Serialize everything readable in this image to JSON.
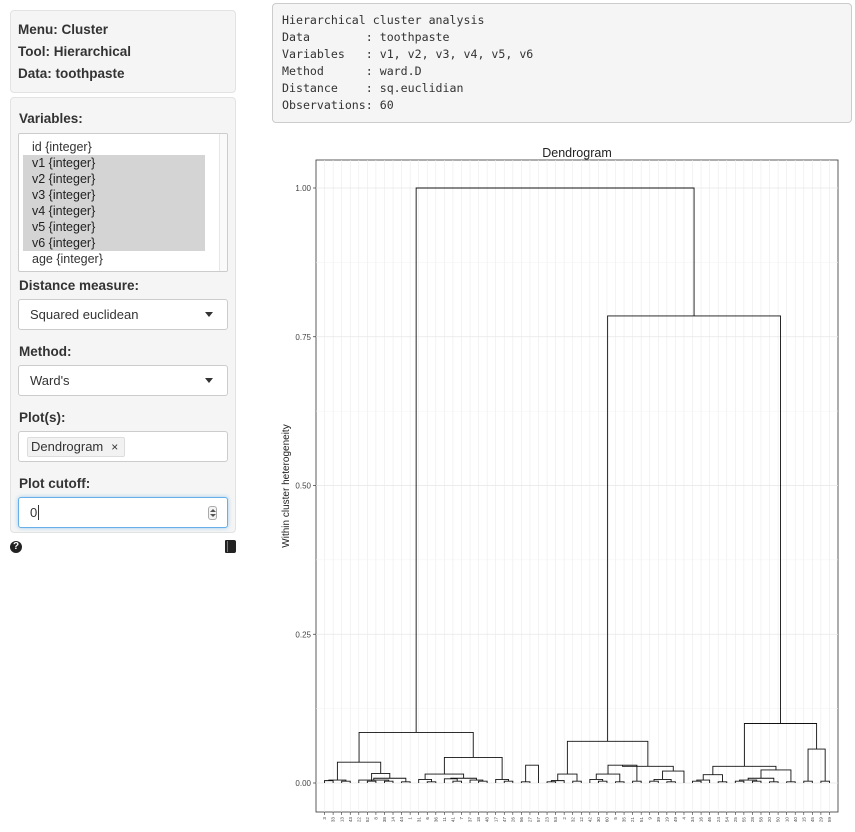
{
  "sidebar": {
    "info": {
      "menu": "Menu: Cluster",
      "tool": "Tool: Hierarchical",
      "data": "Data: toothpaste"
    },
    "variables_label": "Variables:",
    "variables": [
      {
        "label": "id {integer}",
        "selected": false
      },
      {
        "label": "v1 {integer}",
        "selected": true
      },
      {
        "label": "v2 {integer}",
        "selected": true
      },
      {
        "label": "v3 {integer}",
        "selected": true
      },
      {
        "label": "v4 {integer}",
        "selected": true
      },
      {
        "label": "v5 {integer}",
        "selected": true
      },
      {
        "label": "v6 {integer}",
        "selected": true
      },
      {
        "label": "age {integer}",
        "selected": false
      }
    ],
    "distance_label": "Distance measure:",
    "distance_value": "Squared euclidean",
    "method_label": "Method:",
    "method_value": "Ward's",
    "plots_label": "Plot(s):",
    "plots_tag": "Dendrogram",
    "plots_tag_remove": "×",
    "cutoff_label": "Plot cutoff:",
    "cutoff_value": "0",
    "help_icon_glyph": "?"
  },
  "summary": {
    "lines": [
      "Hierarchical cluster analysis",
      "Data        : toothpaste",
      "Variables   : v1, v2, v3, v4, v5, v6",
      "Method      : ward.D",
      "Distance    : sq.euclidian",
      "Observations: 60"
    ]
  },
  "chart_data": {
    "type": "dendrogram",
    "title": "Dendrogram",
    "ylabel": "Within cluster heterogeneity",
    "ylim": [
      0,
      1
    ],
    "yticks": [
      "0.00",
      "0.25",
      "0.50",
      "0.75",
      "1.00"
    ],
    "leaves": [
      "3",
      "33",
      "13",
      "43",
      "22",
      "52",
      "8",
      "38",
      "14",
      "44",
      "1",
      "31",
      "6",
      "36",
      "11",
      "41",
      "7",
      "37",
      "18",
      "48",
      "17",
      "47",
      "26",
      "56",
      "27",
      "57",
      "23",
      "53",
      "2",
      "32",
      "12",
      "42",
      "30",
      "60",
      "5",
      "35",
      "21",
      "51",
      "9",
      "39",
      "19",
      "49",
      "4",
      "34",
      "16",
      "46",
      "24",
      "54",
      "25",
      "55",
      "28",
      "58",
      "20",
      "50",
      "10",
      "40",
      "15",
      "45",
      "29",
      "59"
    ],
    "merges": [
      {
        "a": 1,
        "b": 0,
        "h": 0.004
      },
      {
        "a": 2,
        "b": 3,
        "h": 0.003
      },
      {
        "a": 5,
        "b": 6,
        "h": 0.003
      },
      {
        "a": 7,
        "b": 8,
        "h": 0.003
      },
      {
        "a": 9,
        "b": 10,
        "h": 0.002
      },
      {
        "a": 12,
        "b": 13,
        "h": 0.002
      },
      {
        "a": 15,
        "b": 16,
        "h": 0.003
      },
      {
        "a": 18,
        "b": 19,
        "h": 0.003
      },
      {
        "a": 21,
        "b": 22,
        "h": 0.003
      },
      {
        "a": 23,
        "b": 24,
        "h": 0.002
      },
      {
        "a": 26,
        "b": 27,
        "h": 0.002
      },
      {
        "a": 29,
        "b": 30,
        "h": 0.003
      },
      {
        "a": 32,
        "b": 33,
        "h": 0.003
      },
      {
        "a": 34,
        "b": 35,
        "h": 0.002
      },
      {
        "a": 36,
        "b": 37,
        "h": 0.003
      },
      {
        "a": 38,
        "b": 39,
        "h": 0.003
      },
      {
        "a": 40,
        "b": 41,
        "h": 0.002
      },
      {
        "a": 43,
        "b": 44,
        "h": 0.003
      },
      {
        "a": 46,
        "b": 47,
        "h": 0.002
      },
      {
        "a": 48,
        "b": 49,
        "h": 0.003
      },
      {
        "a": 50,
        "b": 51,
        "h": 0.003
      },
      {
        "a": 52,
        "b": 53,
        "h": 0.002
      },
      {
        "a": 54,
        "b": 55,
        "h": 0.002
      },
      {
        "a": 56,
        "b": 57,
        "h": 0.003
      },
      {
        "a": 4,
        "b": "m3",
        "h": 0.005
      },
      {
        "a": "m24",
        "b": "m4",
        "h": 0.008
      },
      {
        "a": "m2",
        "b": "m25",
        "h": 0.016
      },
      {
        "a": "m0",
        "b": "m1",
        "h": 0.005
      },
      {
        "a": "m27",
        "b": "m26",
        "h": 0.035
      },
      {
        "a": 11,
        "b": "m5",
        "h": 0.006
      },
      {
        "a": 14,
        "b": "m6",
        "h": 0.007
      },
      {
        "a": 17,
        "b": "m7",
        "h": 0.005
      },
      {
        "a": "m30",
        "b": "m31",
        "h": 0.008
      },
      {
        "a": "m29",
        "b": "m32",
        "h": 0.015
      },
      {
        "a": 20,
        "b": "m8",
        "h": 0.006
      },
      {
        "a": 25,
        "b": "m9",
        "h": 0.03
      },
      {
        "a": "m33",
        "b": "m34",
        "h": 0.043
      },
      {
        "a": "m28",
        "b": "m36",
        "h": 0.085
      },
      {
        "a": 28,
        "b": "m10",
        "h": 0.004
      },
      {
        "a": "m38",
        "b": "m11",
        "h": 0.015
      },
      {
        "a": 31,
        "b": "m12",
        "h": 0.006
      },
      {
        "a": "m40",
        "b": "m13",
        "h": 0.015
      },
      {
        "a": "m41",
        "b": "m14",
        "h": 0.03
      },
      {
        "a": "m15",
        "b": "m16",
        "h": 0.006
      },
      {
        "a": 42,
        "b": "m43",
        "h": 0.02
      },
      {
        "a": "m42",
        "b": "m44",
        "h": 0.028
      },
      {
        "a": "m39",
        "b": "m45",
        "h": 0.07
      },
      {
        "a": 45,
        "b": "m17",
        "h": 0.005
      },
      {
        "a": "m47",
        "b": "m18",
        "h": 0.014
      },
      {
        "a": "m19",
        "b": "m20",
        "h": 0.005
      },
      {
        "a": "m49",
        "b": "m21",
        "h": 0.008
      },
      {
        "a": "m50",
        "b": "m22",
        "h": 0.022
      },
      {
        "a": "m48",
        "b": "m51",
        "h": 0.028
      },
      {
        "a": 58,
        "b": 59,
        "h": 0.003
      },
      {
        "a": "m23",
        "b": "m53",
        "h": 0.057
      },
      {
        "a": "m52",
        "b": "m54",
        "h": 0.1
      },
      {
        "a": "m46",
        "b": "m55",
        "h": 0.785
      },
      {
        "a": "m37",
        "b": "m56",
        "h": 1.0
      }
    ]
  }
}
